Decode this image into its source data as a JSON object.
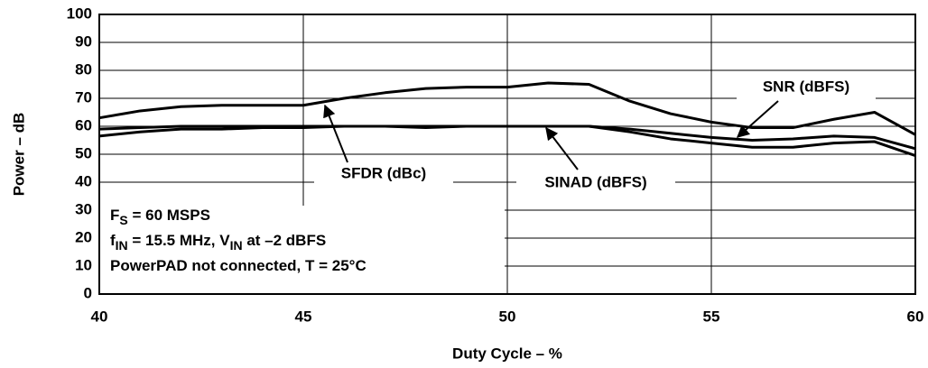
{
  "chart_data": {
    "type": "line",
    "x_label": "Duty Cycle – %",
    "y_label": "Power – dB",
    "x": [
      40,
      41,
      42,
      43,
      44,
      45,
      46,
      47,
      48,
      49,
      50,
      51,
      52,
      53,
      54,
      55,
      56,
      57,
      58,
      59,
      60
    ],
    "series": [
      {
        "name": "SFDR (dBc)",
        "color": "#000000",
        "values": [
          63,
          65.5,
          67,
          67.5,
          67.5,
          67.5,
          70,
          72,
          73.5,
          74,
          74,
          75.5,
          75,
          69,
          64.5,
          61.5,
          59.5,
          59.5,
          62.5,
          65,
          57
        ]
      },
      {
        "name": "SNR (dBFS)",
        "color": "#000000",
        "values": [
          59,
          59.5,
          60,
          60,
          60,
          60,
          60,
          60,
          60,
          60,
          60,
          60,
          60,
          59,
          57.5,
          56,
          55,
          55.5,
          56.5,
          56,
          52
        ]
      },
      {
        "name": "SINAD (dBFS)",
        "color": "#000000",
        "values": [
          56.5,
          58,
          59,
          59,
          59.5,
          59.5,
          60,
          60,
          59.5,
          60,
          60,
          60,
          60,
          58,
          55.5,
          54,
          52.5,
          52.5,
          54,
          54.5,
          49.5
        ]
      }
    ],
    "notes": [
      [
        {
          "text": "F"
        },
        {
          "sub": "S"
        },
        {
          "text": " = 60 MSPS"
        }
      ],
      [
        {
          "text": "f"
        },
        {
          "sub": "IN"
        },
        {
          "text": " = 15.5 MHz, V"
        },
        {
          "sub": "IN"
        },
        {
          "text": " at –2 dBFS"
        }
      ],
      [
        {
          "text": "PowerPAD not connected, T = 25°C"
        }
      ]
    ],
    "xlim": [
      40,
      60
    ],
    "xticks": [
      40,
      45,
      50,
      55,
      60
    ],
    "ylim": [
      0,
      100
    ],
    "yticks": [
      0,
      10,
      20,
      30,
      40,
      50,
      60,
      70,
      80,
      90,
      100
    ],
    "grid": true
  }
}
